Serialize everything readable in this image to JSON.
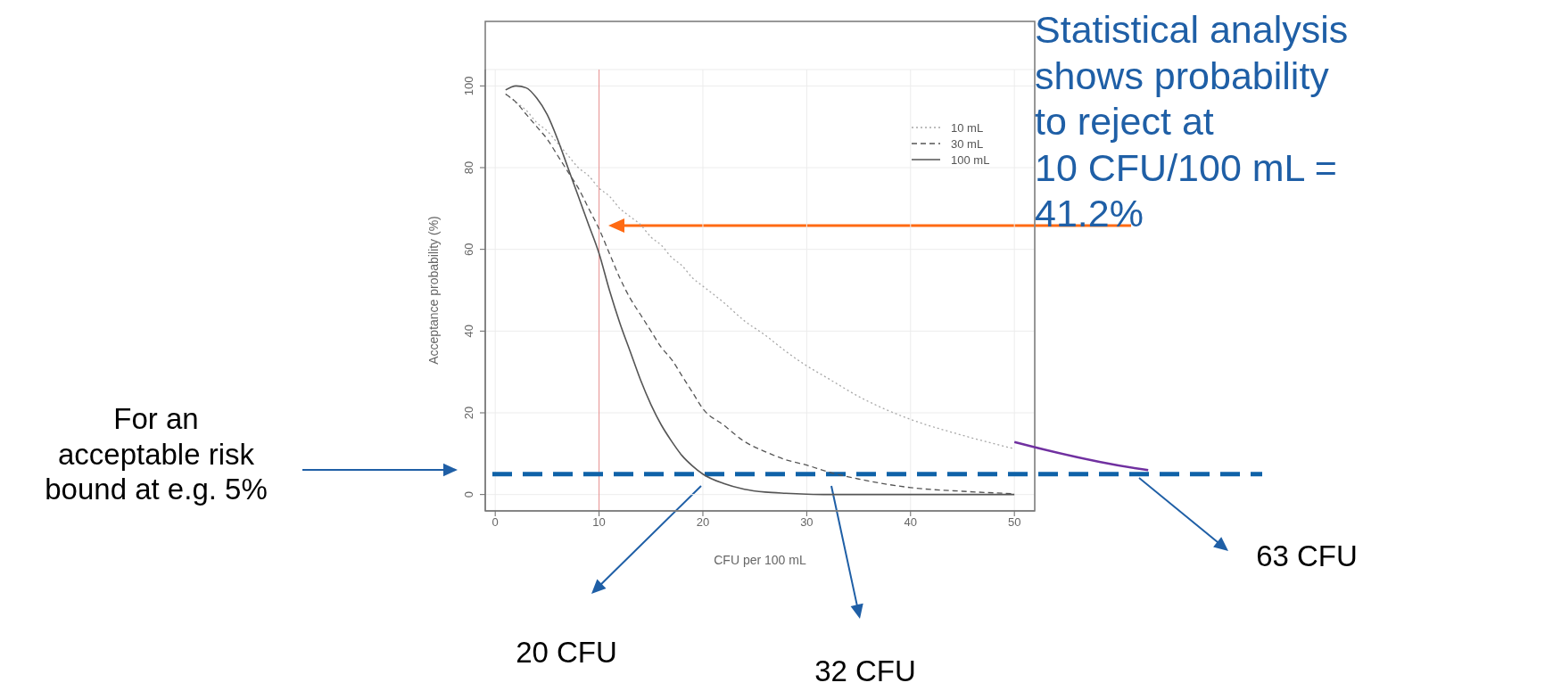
{
  "chart_data": {
    "type": "line",
    "xlabel": "CFU per 100 mL",
    "ylabel": "Acceptance probability (%)",
    "x": [
      1,
      2,
      3,
      4,
      5,
      6,
      7,
      8,
      9,
      10,
      11,
      12,
      13,
      14,
      15,
      16,
      17,
      18,
      19,
      20,
      22,
      24,
      26,
      28,
      30,
      32,
      35,
      40,
      45,
      50
    ],
    "series": [
      {
        "name": "10 mL",
        "color": "#a8a8a8",
        "line_style": "dotted",
        "values": [
          98,
          96,
          94,
          91,
          89,
          86,
          83,
          80,
          78,
          75,
          73,
          70,
          68,
          66,
          63,
          61,
          58,
          56,
          53,
          51,
          47,
          42.5,
          39,
          35,
          31.5,
          28.5,
          24,
          18.4,
          14.5,
          11.2
        ]
      },
      {
        "name": "30 mL",
        "color": "#555555",
        "line_style": "dashed",
        "values": [
          98,
          96,
          93,
          90,
          87,
          83,
          79,
          75,
          70,
          65,
          59,
          53,
          48,
          44,
          40,
          36,
          33,
          29,
          25,
          21,
          17,
          13,
          10.5,
          8.5,
          7.2,
          5.6,
          3.8,
          1.7,
          0.8,
          0.2
        ]
      },
      {
        "name": "100 mL",
        "color": "#555555",
        "line_style": "solid",
        "values": [
          99,
          100,
          99.5,
          97,
          93,
          87,
          80,
          73,
          66,
          59,
          50,
          42,
          35,
          28,
          22,
          17,
          13,
          9.5,
          7,
          5,
          2.7,
          1.3,
          0.6,
          0.3,
          0.1,
          0,
          0,
          0,
          0,
          0
        ]
      }
    ],
    "xlim": [
      -0.96,
      51.96
    ],
    "ylim": [
      -4,
      104
    ],
    "xticks": [
      0,
      10,
      20,
      30,
      40,
      50
    ],
    "yticks": [
      0,
      20,
      40,
      60,
      80,
      100
    ],
    "grid": true,
    "legend": "top right",
    "marker": "none",
    "ref_lines": [
      {
        "axis": "x",
        "value": 10,
        "color": "#e89090",
        "line_style": "solid"
      },
      {
        "axis": "y",
        "value": 5,
        "color": "#0f62a8",
        "line_style": "dashed"
      }
    ],
    "annotations": [
      "Statistical analysis\nshows probability\nto reject at\n10 CFU/100 mL =\n41.2%",
      "For an\nacceptable risk\nbound at e.g. 5%",
      "20 CFU",
      "32 CFU",
      "63 CFU"
    ]
  }
}
